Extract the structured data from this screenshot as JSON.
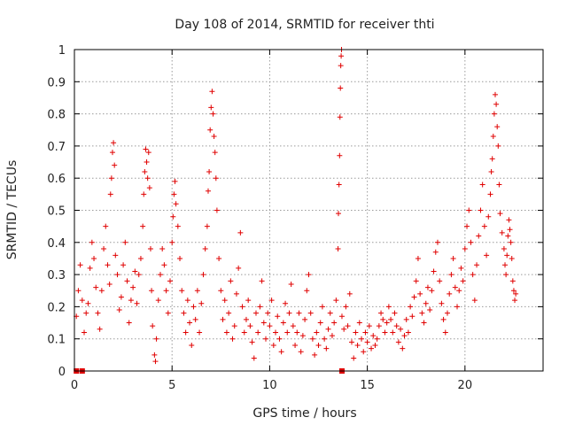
{
  "chart_data": {
    "type": "scatter",
    "title": "Day 108 of 2014, SRMTID for receiver thti",
    "xlabel": "GPS time / hours",
    "ylabel": "SRMTID / TECUs",
    "xlim": [
      0,
      24
    ],
    "ylim": [
      0,
      1
    ],
    "xticks": [
      0,
      5,
      10,
      15,
      20
    ],
    "xtick_labels": [
      "0",
      "5",
      "10",
      "15",
      "20"
    ],
    "yticks": [
      0,
      0.1,
      0.2,
      0.3,
      0.4,
      0.5,
      0.6,
      0.7,
      0.8,
      0.9,
      1
    ],
    "ytick_labels": [
      "0",
      "0.1",
      "0.2",
      "0.3",
      "0.4",
      "0.5",
      "0.6",
      "0.7",
      "0.8",
      "0.9",
      "1"
    ],
    "grid": true,
    "marker": "+",
    "color": "#e00000",
    "series": [
      {
        "name": "SRMTID",
        "points": [
          [
            0.1,
            0.0
          ],
          [
            0.4,
            0.0
          ],
          [
            13.7,
            0.0
          ],
          [
            0.1,
            0.17
          ],
          [
            0.2,
            0.25
          ],
          [
            0.3,
            0.33
          ],
          [
            0.4,
            0.22
          ],
          [
            0.5,
            0.12
          ],
          [
            0.6,
            0.18
          ],
          [
            0.7,
            0.21
          ],
          [
            0.8,
            0.32
          ],
          [
            0.9,
            0.4
          ],
          [
            1.0,
            0.35
          ],
          [
            1.1,
            0.26
          ],
          [
            1.2,
            0.18
          ],
          [
            1.3,
            0.13
          ],
          [
            1.4,
            0.25
          ],
          [
            1.5,
            0.38
          ],
          [
            1.6,
            0.45
          ],
          [
            1.7,
            0.33
          ],
          [
            1.8,
            0.27
          ],
          [
            1.85,
            0.55
          ],
          [
            1.9,
            0.6
          ],
          [
            1.95,
            0.68
          ],
          [
            2.0,
            0.71
          ],
          [
            2.05,
            0.64
          ],
          [
            2.1,
            0.36
          ],
          [
            2.2,
            0.3
          ],
          [
            2.3,
            0.19
          ],
          [
            2.4,
            0.23
          ],
          [
            2.5,
            0.33
          ],
          [
            2.6,
            0.4
          ],
          [
            2.7,
            0.28
          ],
          [
            2.8,
            0.15
          ],
          [
            2.9,
            0.22
          ],
          [
            3.0,
            0.26
          ],
          [
            3.1,
            0.31
          ],
          [
            3.2,
            0.21
          ],
          [
            3.3,
            0.3
          ],
          [
            3.4,
            0.35
          ],
          [
            3.5,
            0.45
          ],
          [
            3.55,
            0.55
          ],
          [
            3.6,
            0.62
          ],
          [
            3.65,
            0.69
          ],
          [
            3.7,
            0.65
          ],
          [
            3.75,
            0.6
          ],
          [
            3.8,
            0.68
          ],
          [
            3.85,
            0.57
          ],
          [
            3.9,
            0.38
          ],
          [
            3.95,
            0.25
          ],
          [
            4.0,
            0.14
          ],
          [
            4.1,
            0.05
          ],
          [
            4.15,
            0.03
          ],
          [
            4.2,
            0.1
          ],
          [
            4.3,
            0.22
          ],
          [
            4.4,
            0.3
          ],
          [
            4.5,
            0.38
          ],
          [
            4.6,
            0.33
          ],
          [
            4.7,
            0.25
          ],
          [
            4.8,
            0.18
          ],
          [
            4.9,
            0.28
          ],
          [
            5.0,
            0.4
          ],
          [
            5.05,
            0.48
          ],
          [
            5.1,
            0.55
          ],
          [
            5.15,
            0.59
          ],
          [
            5.2,
            0.52
          ],
          [
            5.3,
            0.45
          ],
          [
            5.4,
            0.35
          ],
          [
            5.5,
            0.25
          ],
          [
            5.6,
            0.18
          ],
          [
            5.7,
            0.12
          ],
          [
            5.8,
            0.22
          ],
          [
            5.9,
            0.15
          ],
          [
            6.0,
            0.08
          ],
          [
            6.1,
            0.2
          ],
          [
            6.2,
            0.16
          ],
          [
            6.3,
            0.25
          ],
          [
            6.4,
            0.12
          ],
          [
            6.5,
            0.21
          ],
          [
            6.6,
            0.3
          ],
          [
            6.7,
            0.38
          ],
          [
            6.8,
            0.45
          ],
          [
            6.85,
            0.56
          ],
          [
            6.9,
            0.62
          ],
          [
            6.95,
            0.75
          ],
          [
            7.0,
            0.82
          ],
          [
            7.05,
            0.87
          ],
          [
            7.1,
            0.8
          ],
          [
            7.15,
            0.73
          ],
          [
            7.2,
            0.68
          ],
          [
            7.25,
            0.6
          ],
          [
            7.3,
            0.5
          ],
          [
            7.4,
            0.35
          ],
          [
            7.5,
            0.25
          ],
          [
            7.6,
            0.16
          ],
          [
            7.7,
            0.22
          ],
          [
            7.8,
            0.12
          ],
          [
            7.9,
            0.18
          ],
          [
            8.0,
            0.28
          ],
          [
            8.1,
            0.1
          ],
          [
            8.2,
            0.14
          ],
          [
            8.3,
            0.24
          ],
          [
            8.4,
            0.32
          ],
          [
            8.5,
            0.43
          ],
          [
            8.6,
            0.2
          ],
          [
            8.7,
            0.12
          ],
          [
            8.8,
            0.16
          ],
          [
            8.9,
            0.22
          ],
          [
            9.0,
            0.14
          ],
          [
            9.1,
            0.09
          ],
          [
            9.2,
            0.04
          ],
          [
            9.3,
            0.18
          ],
          [
            9.4,
            0.12
          ],
          [
            9.5,
            0.2
          ],
          [
            9.6,
            0.28
          ],
          [
            9.7,
            0.15
          ],
          [
            9.8,
            0.1
          ],
          [
            9.9,
            0.18
          ],
          [
            10.0,
            0.14
          ],
          [
            10.1,
            0.22
          ],
          [
            10.2,
            0.08
          ],
          [
            10.3,
            0.12
          ],
          [
            10.4,
            0.17
          ],
          [
            10.5,
            0.1
          ],
          [
            10.6,
            0.06
          ],
          [
            10.7,
            0.15
          ],
          [
            10.8,
            0.21
          ],
          [
            10.9,
            0.12
          ],
          [
            11.0,
            0.18
          ],
          [
            11.1,
            0.27
          ],
          [
            11.2,
            0.14
          ],
          [
            11.3,
            0.08
          ],
          [
            11.4,
            0.12
          ],
          [
            11.5,
            0.18
          ],
          [
            11.6,
            0.06
          ],
          [
            11.7,
            0.11
          ],
          [
            11.8,
            0.16
          ],
          [
            11.9,
            0.25
          ],
          [
            12.0,
            0.3
          ],
          [
            12.1,
            0.18
          ],
          [
            12.2,
            0.1
          ],
          [
            12.3,
            0.05
          ],
          [
            12.4,
            0.12
          ],
          [
            12.5,
            0.08
          ],
          [
            12.6,
            0.15
          ],
          [
            12.7,
            0.2
          ],
          [
            12.8,
            0.1
          ],
          [
            12.9,
            0.07
          ],
          [
            13.0,
            0.13
          ],
          [
            13.1,
            0.18
          ],
          [
            13.2,
            0.11
          ],
          [
            13.3,
            0.15
          ],
          [
            13.4,
            0.22
          ],
          [
            13.5,
            0.38
          ],
          [
            13.52,
            0.49
          ],
          [
            13.55,
            0.58
          ],
          [
            13.58,
            0.67
          ],
          [
            13.6,
            0.79
          ],
          [
            13.62,
            0.88
          ],
          [
            13.64,
            0.95
          ],
          [
            13.66,
            0.98
          ],
          [
            13.68,
            1.0
          ],
          [
            13.7,
            0.17
          ],
          [
            13.8,
            0.13
          ],
          [
            13.9,
            0.2
          ],
          [
            14.0,
            0.14
          ],
          [
            14.1,
            0.24
          ],
          [
            14.2,
            0.09
          ],
          [
            14.3,
            0.04
          ],
          [
            14.4,
            0.12
          ],
          [
            14.5,
            0.08
          ],
          [
            14.6,
            0.15
          ],
          [
            14.7,
            0.1
          ],
          [
            14.8,
            0.06
          ],
          [
            14.9,
            0.12
          ],
          [
            15.0,
            0.09
          ],
          [
            15.1,
            0.14
          ],
          [
            15.2,
            0.07
          ],
          [
            15.3,
            0.11
          ],
          [
            15.4,
            0.08
          ],
          [
            15.5,
            0.1
          ],
          [
            15.6,
            0.14
          ],
          [
            15.7,
            0.18
          ],
          [
            15.8,
            0.16
          ],
          [
            15.9,
            0.12
          ],
          [
            16.0,
            0.15
          ],
          [
            16.1,
            0.2
          ],
          [
            16.2,
            0.16
          ],
          [
            16.3,
            0.12
          ],
          [
            16.4,
            0.18
          ],
          [
            16.5,
            0.14
          ],
          [
            16.6,
            0.09
          ],
          [
            16.7,
            0.13
          ],
          [
            16.8,
            0.07
          ],
          [
            16.9,
            0.11
          ],
          [
            17.0,
            0.16
          ],
          [
            17.1,
            0.12
          ],
          [
            17.2,
            0.2
          ],
          [
            17.3,
            0.17
          ],
          [
            17.4,
            0.23
          ],
          [
            17.5,
            0.28
          ],
          [
            17.6,
            0.35
          ],
          [
            17.7,
            0.24
          ],
          [
            17.8,
            0.18
          ],
          [
            17.9,
            0.15
          ],
          [
            18.0,
            0.21
          ],
          [
            18.1,
            0.26
          ],
          [
            18.2,
            0.19
          ],
          [
            18.3,
            0.25
          ],
          [
            18.4,
            0.31
          ],
          [
            18.5,
            0.37
          ],
          [
            18.6,
            0.4
          ],
          [
            18.7,
            0.28
          ],
          [
            18.8,
            0.21
          ],
          [
            18.9,
            0.16
          ],
          [
            19.0,
            0.12
          ],
          [
            19.1,
            0.18
          ],
          [
            19.2,
            0.24
          ],
          [
            19.3,
            0.3
          ],
          [
            19.4,
            0.35
          ],
          [
            19.5,
            0.26
          ],
          [
            19.6,
            0.2
          ],
          [
            19.7,
            0.25
          ],
          [
            19.8,
            0.32
          ],
          [
            19.9,
            0.28
          ],
          [
            20.0,
            0.38
          ],
          [
            20.1,
            0.45
          ],
          [
            20.2,
            0.5
          ],
          [
            20.3,
            0.4
          ],
          [
            20.4,
            0.3
          ],
          [
            20.5,
            0.22
          ],
          [
            20.6,
            0.33
          ],
          [
            20.7,
            0.42
          ],
          [
            20.8,
            0.5
          ],
          [
            20.9,
            0.58
          ],
          [
            21.0,
            0.45
          ],
          [
            21.1,
            0.36
          ],
          [
            21.2,
            0.48
          ],
          [
            21.3,
            0.55
          ],
          [
            21.35,
            0.62
          ],
          [
            21.4,
            0.66
          ],
          [
            21.45,
            0.73
          ],
          [
            21.5,
            0.8
          ],
          [
            21.55,
            0.86
          ],
          [
            21.6,
            0.83
          ],
          [
            21.65,
            0.76
          ],
          [
            21.7,
            0.7
          ],
          [
            21.75,
            0.58
          ],
          [
            21.8,
            0.49
          ],
          [
            21.9,
            0.43
          ],
          [
            22.0,
            0.38
          ],
          [
            22.05,
            0.33
          ],
          [
            22.1,
            0.3
          ],
          [
            22.15,
            0.36
          ],
          [
            22.2,
            0.42
          ],
          [
            22.25,
            0.47
          ],
          [
            22.3,
            0.44
          ],
          [
            22.35,
            0.4
          ],
          [
            22.4,
            0.35
          ],
          [
            22.45,
            0.28
          ],
          [
            22.5,
            0.25
          ],
          [
            22.55,
            0.22
          ],
          [
            22.6,
            0.24
          ]
        ]
      }
    ]
  }
}
